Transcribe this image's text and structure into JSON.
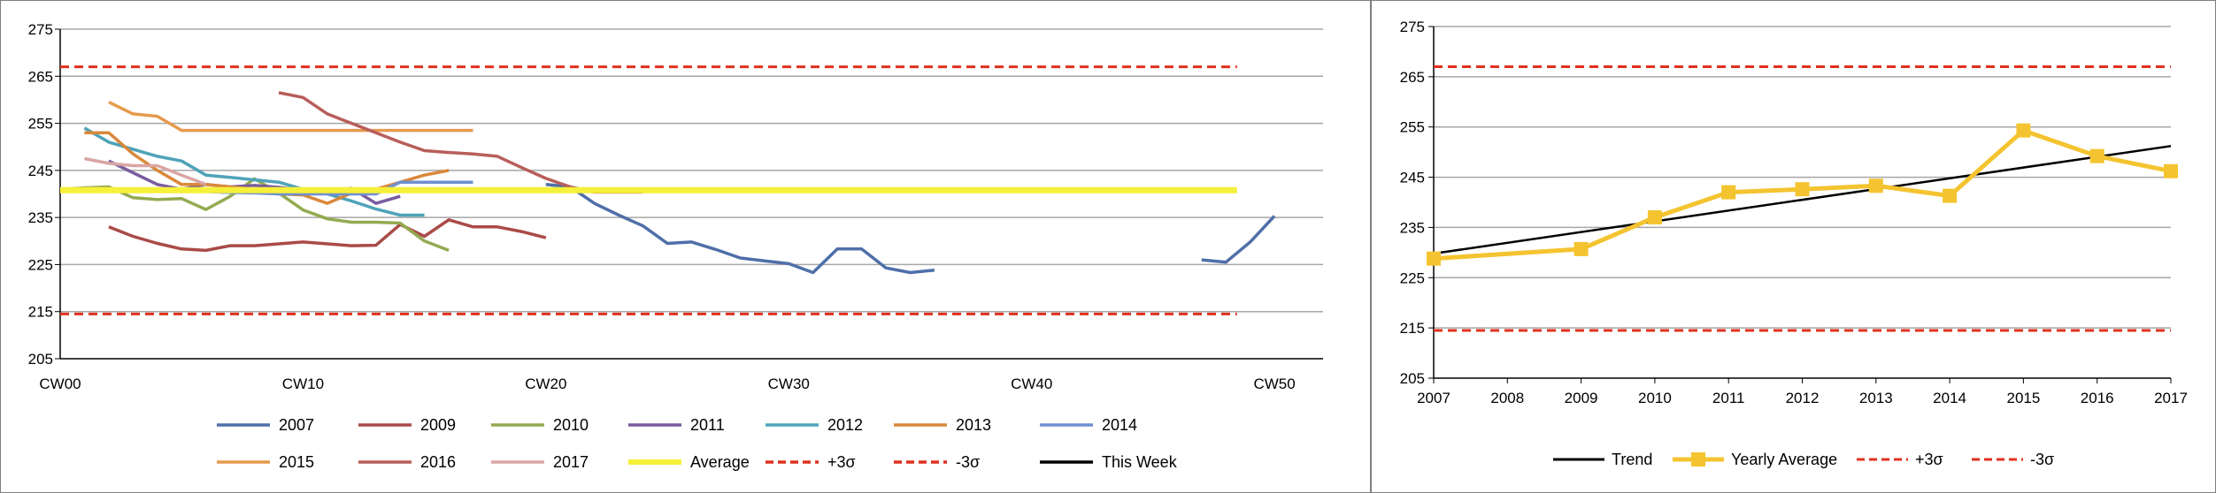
{
  "chart_data": [
    {
      "type": "line",
      "xlabel": "",
      "ylabel": "",
      "ylim": [
        205,
        275
      ],
      "yticks": [
        205,
        215,
        225,
        235,
        245,
        255,
        265,
        275
      ],
      "xlim": [
        0,
        52
      ],
      "xtick_values": [
        0,
        10,
        20,
        30,
        40,
        50
      ],
      "xtick_labels": [
        "CW00",
        "CW10",
        "CW20",
        "CW30",
        "CW40",
        "CW50"
      ],
      "grid": "horizontal",
      "legend_position": "bottom",
      "series": [
        {
          "name": "2007",
          "color": "#4f6fa8",
          "points": [
            [
              20,
              242
            ],
            [
              21,
              241.5
            ],
            [
              22,
              238
            ],
            [
              23,
              235.5
            ],
            [
              24,
              233.2
            ],
            [
              25,
              229.5
            ],
            [
              26,
              229.8
            ],
            [
              27,
              228.2
            ],
            [
              28,
              226.4
            ],
            [
              29,
              225.8
            ],
            [
              30,
              225.2
            ],
            [
              31,
              223.3
            ],
            [
              32,
              228.3
            ],
            [
              33,
              228.3
            ],
            [
              34,
              224.3
            ],
            [
              35,
              223.3
            ],
            [
              36,
              223.8
            ]
          ],
          "points2": [
            [
              47,
              226
            ],
            [
              48,
              225.5
            ],
            [
              49,
              229.8
            ],
            [
              50,
              235.3
            ]
          ]
        },
        {
          "name": "2009",
          "color": "#a94b48",
          "points": [
            [
              2,
              233
            ],
            [
              3,
              231
            ],
            [
              4,
              229.5
            ],
            [
              5,
              228.3
            ],
            [
              6,
              228
            ],
            [
              7,
              229
            ],
            [
              8,
              229
            ],
            [
              9,
              229.4
            ],
            [
              10,
              229.8
            ],
            [
              11,
              229.4
            ],
            [
              12,
              229
            ],
            [
              13,
              229.1
            ],
            [
              14,
              233.5
            ],
            [
              15,
              231
            ],
            [
              16,
              234.5
            ],
            [
              17,
              233
            ],
            [
              18,
              233
            ],
            [
              19,
              232
            ],
            [
              20,
              230.7
            ]
          ]
        },
        {
          "name": "2010",
          "color": "#93aa51",
          "points": [
            [
              0,
              241
            ],
            [
              1,
              241.3
            ],
            [
              2,
              241.5
            ],
            [
              3,
              239.2
            ],
            [
              4,
              238.8
            ],
            [
              5,
              239
            ],
            [
              6,
              236.7
            ],
            [
              7,
              239.5
            ],
            [
              8,
              243.2
            ],
            [
              9,
              240.2
            ],
            [
              10,
              236.6
            ],
            [
              11,
              234.7
            ],
            [
              12,
              234
            ],
            [
              13,
              234
            ],
            [
              14,
              233.8
            ],
            [
              15,
              230
            ],
            [
              16,
              228
            ]
          ]
        },
        {
          "name": "2011",
          "color": "#7a5c9e",
          "points": [
            [
              2,
              247
            ],
            [
              3,
              244.5
            ],
            [
              4,
              242
            ],
            [
              5,
              241
            ],
            [
              6,
              242
            ],
            [
              7,
              241.5
            ],
            [
              8,
              241.8
            ],
            [
              9,
              241.4
            ],
            [
              10,
              240.8
            ],
            [
              11,
              240.4
            ],
            [
              12,
              241.2
            ],
            [
              13,
              238
            ],
            [
              14,
              239.5
            ]
          ]
        },
        {
          "name": "2012",
          "color": "#4fa3b8",
          "points": [
            [
              1,
              254
            ],
            [
              2,
              251
            ],
            [
              3,
              249.5
            ],
            [
              4,
              248
            ],
            [
              5,
              247
            ],
            [
              6,
              244
            ],
            [
              7,
              243.5
            ],
            [
              8,
              243
            ],
            [
              9,
              242.5
            ],
            [
              10,
              241
            ],
            [
              11,
              240
            ],
            [
              12,
              238.5
            ],
            [
              13,
              236.8
            ],
            [
              14,
              235.5
            ],
            [
              15,
              235.5
            ]
          ]
        },
        {
          "name": "2013",
          "color": "#d9883b",
          "points": [
            [
              1,
              253
            ],
            [
              2,
              253
            ],
            [
              3,
              248.5
            ],
            [
              4,
              245
            ],
            [
              5,
              242
            ],
            [
              6,
              242
            ],
            [
              7,
              241.5
            ],
            [
              8,
              241
            ],
            [
              9,
              240
            ],
            [
              10,
              239.8
            ],
            [
              11,
              238
            ],
            [
              12,
              240.2
            ],
            [
              13,
              241
            ],
            [
              14,
              242.5
            ],
            [
              15,
              244
            ],
            [
              16,
              245
            ]
          ]
        },
        {
          "name": "2014",
          "color": "#6f8fd0",
          "points": [
            [
              4,
              241
            ],
            [
              5,
              240.6
            ],
            [
              6,
              240.5
            ],
            [
              7,
              240.3
            ],
            [
              8,
              240.2
            ],
            [
              9,
              240
            ],
            [
              10,
              240
            ],
            [
              11,
              240
            ],
            [
              12,
              240
            ],
            [
              13,
              240
            ],
            [
              14,
              242.5
            ],
            [
              15,
              242.5
            ],
            [
              16,
              242.5
            ],
            [
              17,
              242.5
            ]
          ]
        },
        {
          "name": "2015",
          "color": "#e69a4e",
          "points": [
            [
              2,
              259.5
            ],
            [
              3,
              257
            ],
            [
              4,
              256.5
            ],
            [
              5,
              253.5
            ],
            [
              6,
              253.5
            ],
            [
              7,
              253.5
            ],
            [
              8,
              253.5
            ],
            [
              9,
              253.5
            ],
            [
              10,
              253.5
            ],
            [
              11,
              253.5
            ],
            [
              12,
              253.5
            ],
            [
              13,
              253.5
            ],
            [
              14,
              253.5
            ],
            [
              15,
              253.5
            ],
            [
              16,
              253.5
            ],
            [
              17,
              253.5
            ]
          ]
        },
        {
          "name": "2016",
          "color": "#b85e5a",
          "points": [
            [
              9,
              261.5
            ],
            [
              10,
              260.5
            ],
            [
              11,
              257
            ],
            [
              12,
              255
            ],
            [
              13,
              253
            ],
            [
              14,
              251
            ],
            [
              15,
              249.2
            ],
            [
              16,
              248.8
            ],
            [
              17,
              248.5
            ],
            [
              18,
              248
            ],
            [
              19,
              245.6
            ],
            [
              20,
              243.3
            ],
            [
              21,
              241.5
            ],
            [
              22,
              240.4
            ],
            [
              23,
              240.4
            ],
            [
              24,
              240.4
            ]
          ]
        },
        {
          "name": "2017",
          "color": "#d9a6a4",
          "points": [
            [
              1,
              247.5
            ],
            [
              2,
              246.5
            ],
            [
              3,
              246
            ],
            [
              4,
              246
            ],
            [
              5,
              244
            ],
            [
              6,
              242
            ]
          ]
        },
        {
          "name": "Average",
          "color": "#f5f03a",
          "constant": 240.8
        },
        {
          "name": "+3σ",
          "color": "#e0301e",
          "dashed": true,
          "constant": 267
        },
        {
          "name": "-3σ",
          "color": "#e0301e",
          "dashed": true,
          "constant": 214.5
        },
        {
          "name": "This Week",
          "color": "#000000",
          "points": []
        }
      ]
    },
    {
      "type": "line",
      "xlabel": "",
      "ylabel": "",
      "ylim": [
        205,
        275
      ],
      "yticks": [
        205,
        215,
        225,
        235,
        245,
        255,
        265,
        275
      ],
      "categories": [
        "2007",
        "2008",
        "2009",
        "2010",
        "2011",
        "2012",
        "2013",
        "2014",
        "2015",
        "2016",
        "2017"
      ],
      "grid": "horizontal",
      "legend_position": "bottom",
      "series": [
        {
          "name": "Trend",
          "color": "#000000",
          "x": [
            2007,
            2017
          ],
          "values": [
            229.8,
            251.2
          ]
        },
        {
          "name": "Yearly Average",
          "color": "#f4c430",
          "x": [
            2007,
            2009,
            2010,
            2011,
            2012,
            2013,
            2014,
            2015,
            2016,
            2017
          ],
          "values": [
            228.8,
            230.7,
            237,
            242,
            242.6,
            243.3,
            241.3,
            254.3,
            249.2,
            246.2
          ]
        },
        {
          "name": "+3σ",
          "color": "#e0301e",
          "dashed": true,
          "constant": 267
        },
        {
          "name": "-3σ",
          "color": "#e0301e",
          "dashed": true,
          "constant": 214.5
        }
      ]
    }
  ]
}
